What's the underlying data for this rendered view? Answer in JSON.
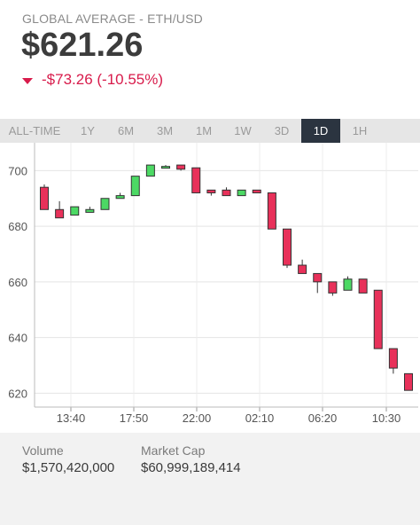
{
  "header": {
    "pair_label": "GLOBAL AVERAGE - ETH/USD",
    "price": "$621.26",
    "change": "-$73.26 (-10.55%)",
    "change_color": "#d81b4b"
  },
  "tabs": [
    {
      "label": "ALL-TIME",
      "active": false
    },
    {
      "label": "1Y",
      "active": false
    },
    {
      "label": "6M",
      "active": false
    },
    {
      "label": "3M",
      "active": false
    },
    {
      "label": "1M",
      "active": false
    },
    {
      "label": "1W",
      "active": false
    },
    {
      "label": "3D",
      "active": false
    },
    {
      "label": "1D",
      "active": true
    },
    {
      "label": "1H",
      "active": false
    }
  ],
  "chart_data": {
    "type": "candlestick",
    "ylim": [
      615,
      710
    ],
    "yticks": [
      620,
      640,
      660,
      680,
      700
    ],
    "xticks": [
      "13:40",
      "17:50",
      "22:00",
      "02:10",
      "06:20",
      "10:30"
    ],
    "up_color": "#4cd964",
    "down_color": "#e8315a",
    "grid": true,
    "candles": [
      {
        "o": 694,
        "h": 695,
        "l": 686,
        "c": 686
      },
      {
        "o": 686,
        "h": 689,
        "l": 683,
        "c": 683
      },
      {
        "o": 684,
        "h": 687,
        "l": 684,
        "c": 687
      },
      {
        "o": 685,
        "h": 687,
        "l": 685,
        "c": 686
      },
      {
        "o": 686,
        "h": 690,
        "l": 686,
        "c": 690
      },
      {
        "o": 690,
        "h": 692,
        "l": 690,
        "c": 691
      },
      {
        "o": 691,
        "h": 698,
        "l": 691,
        "c": 698
      },
      {
        "o": 698,
        "h": 702,
        "l": 698,
        "c": 702
      },
      {
        "o": 701,
        "h": 702,
        "l": 701,
        "c": 701.5
      },
      {
        "o": 702,
        "h": 702,
        "l": 700,
        "c": 700.5
      },
      {
        "o": 701,
        "h": 701,
        "l": 692,
        "c": 692
      },
      {
        "o": 693,
        "h": 693,
        "l": 691,
        "c": 692
      },
      {
        "o": 693,
        "h": 694,
        "l": 691,
        "c": 691
      },
      {
        "o": 691,
        "h": 693,
        "l": 691,
        "c": 693
      },
      {
        "o": 693,
        "h": 693,
        "l": 692,
        "c": 692
      },
      {
        "o": 692,
        "h": 692,
        "l": 679,
        "c": 679
      },
      {
        "o": 679,
        "h": 679,
        "l": 665,
        "c": 666
      },
      {
        "o": 666,
        "h": 668,
        "l": 663,
        "c": 663
      },
      {
        "o": 663,
        "h": 663,
        "l": 656,
        "c": 660
      },
      {
        "o": 660,
        "h": 660,
        "l": 655,
        "c": 656
      },
      {
        "o": 657,
        "h": 662,
        "l": 657,
        "c": 661
      },
      {
        "o": 661,
        "h": 661,
        "l": 656,
        "c": 656
      },
      {
        "o": 657,
        "h": 657,
        "l": 636,
        "c": 636
      },
      {
        "o": 636,
        "h": 636,
        "l": 627,
        "c": 629
      },
      {
        "o": 627,
        "h": 627,
        "l": 621,
        "c": 621
      }
    ]
  },
  "stats": {
    "volume_label": "Volume",
    "volume_value": "$1,570,420,000",
    "market_cap_label": "Market Cap",
    "market_cap_value": "$60,999,189,414"
  }
}
